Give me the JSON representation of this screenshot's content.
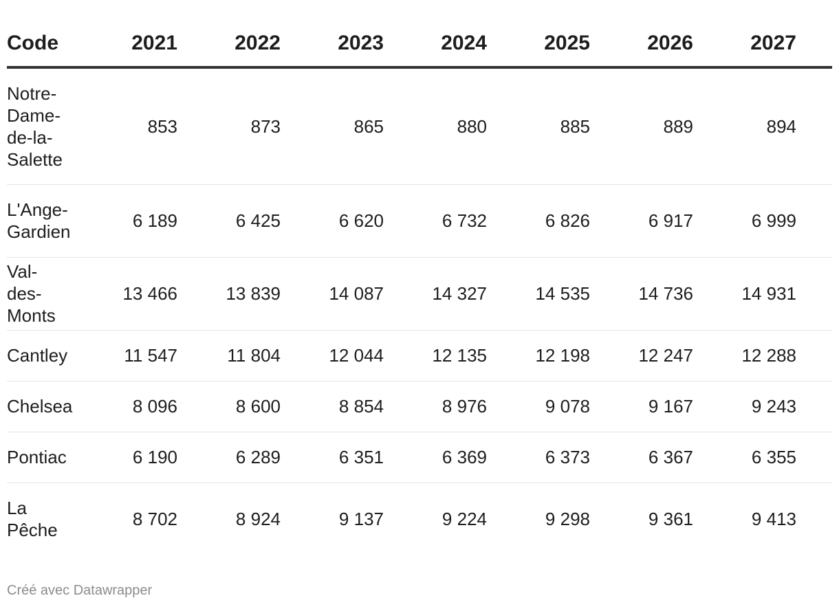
{
  "chart_data": {
    "type": "table",
    "columns": [
      "Code",
      "2021",
      "2022",
      "2023",
      "2024",
      "2025",
      "2026",
      "2027"
    ],
    "rows": [
      {
        "name": "Notre-Dame-de-la-Salette",
        "name_lines": [
          "Notre-",
          "Dame-",
          "de-la-",
          "Salette"
        ],
        "values": [
          "853",
          "873",
          "865",
          "880",
          "885",
          "889",
          "894"
        ]
      },
      {
        "name": "L'Ange-Gardien",
        "name_lines": [
          "L'Ange-",
          "Gardien"
        ],
        "values": [
          "6 189",
          "6 425",
          "6 620",
          "6 732",
          "6 826",
          "6 917",
          "6 999"
        ]
      },
      {
        "name": "Val-des-Monts",
        "name_lines": [
          "Val-des-",
          "Monts"
        ],
        "values": [
          "13 466",
          "13 839",
          "14 087",
          "14 327",
          "14 535",
          "14 736",
          "14 931"
        ]
      },
      {
        "name": "Cantley",
        "name_lines": [
          "Cantley"
        ],
        "values": [
          "11 547",
          "11 804",
          "12 044",
          "12 135",
          "12 198",
          "12 247",
          "12 288"
        ]
      },
      {
        "name": "Chelsea",
        "name_lines": [
          "Chelsea"
        ],
        "values": [
          "8 096",
          "8 600",
          "8 854",
          "8 976",
          "9 078",
          "9 167",
          "9 243"
        ]
      },
      {
        "name": "Pontiac",
        "name_lines": [
          "Pontiac"
        ],
        "values": [
          "6 190",
          "6 289",
          "6 351",
          "6 369",
          "6 373",
          "6 367",
          "6 355"
        ]
      },
      {
        "name": "La Pêche",
        "name_lines": [
          "La",
          "Pêche"
        ],
        "values": [
          "8 702",
          "8 924",
          "9 137",
          "9 224",
          "9 298",
          "9 361",
          "9 413"
        ]
      }
    ]
  },
  "footer": {
    "credit": "Créé avec Datawrapper"
  }
}
